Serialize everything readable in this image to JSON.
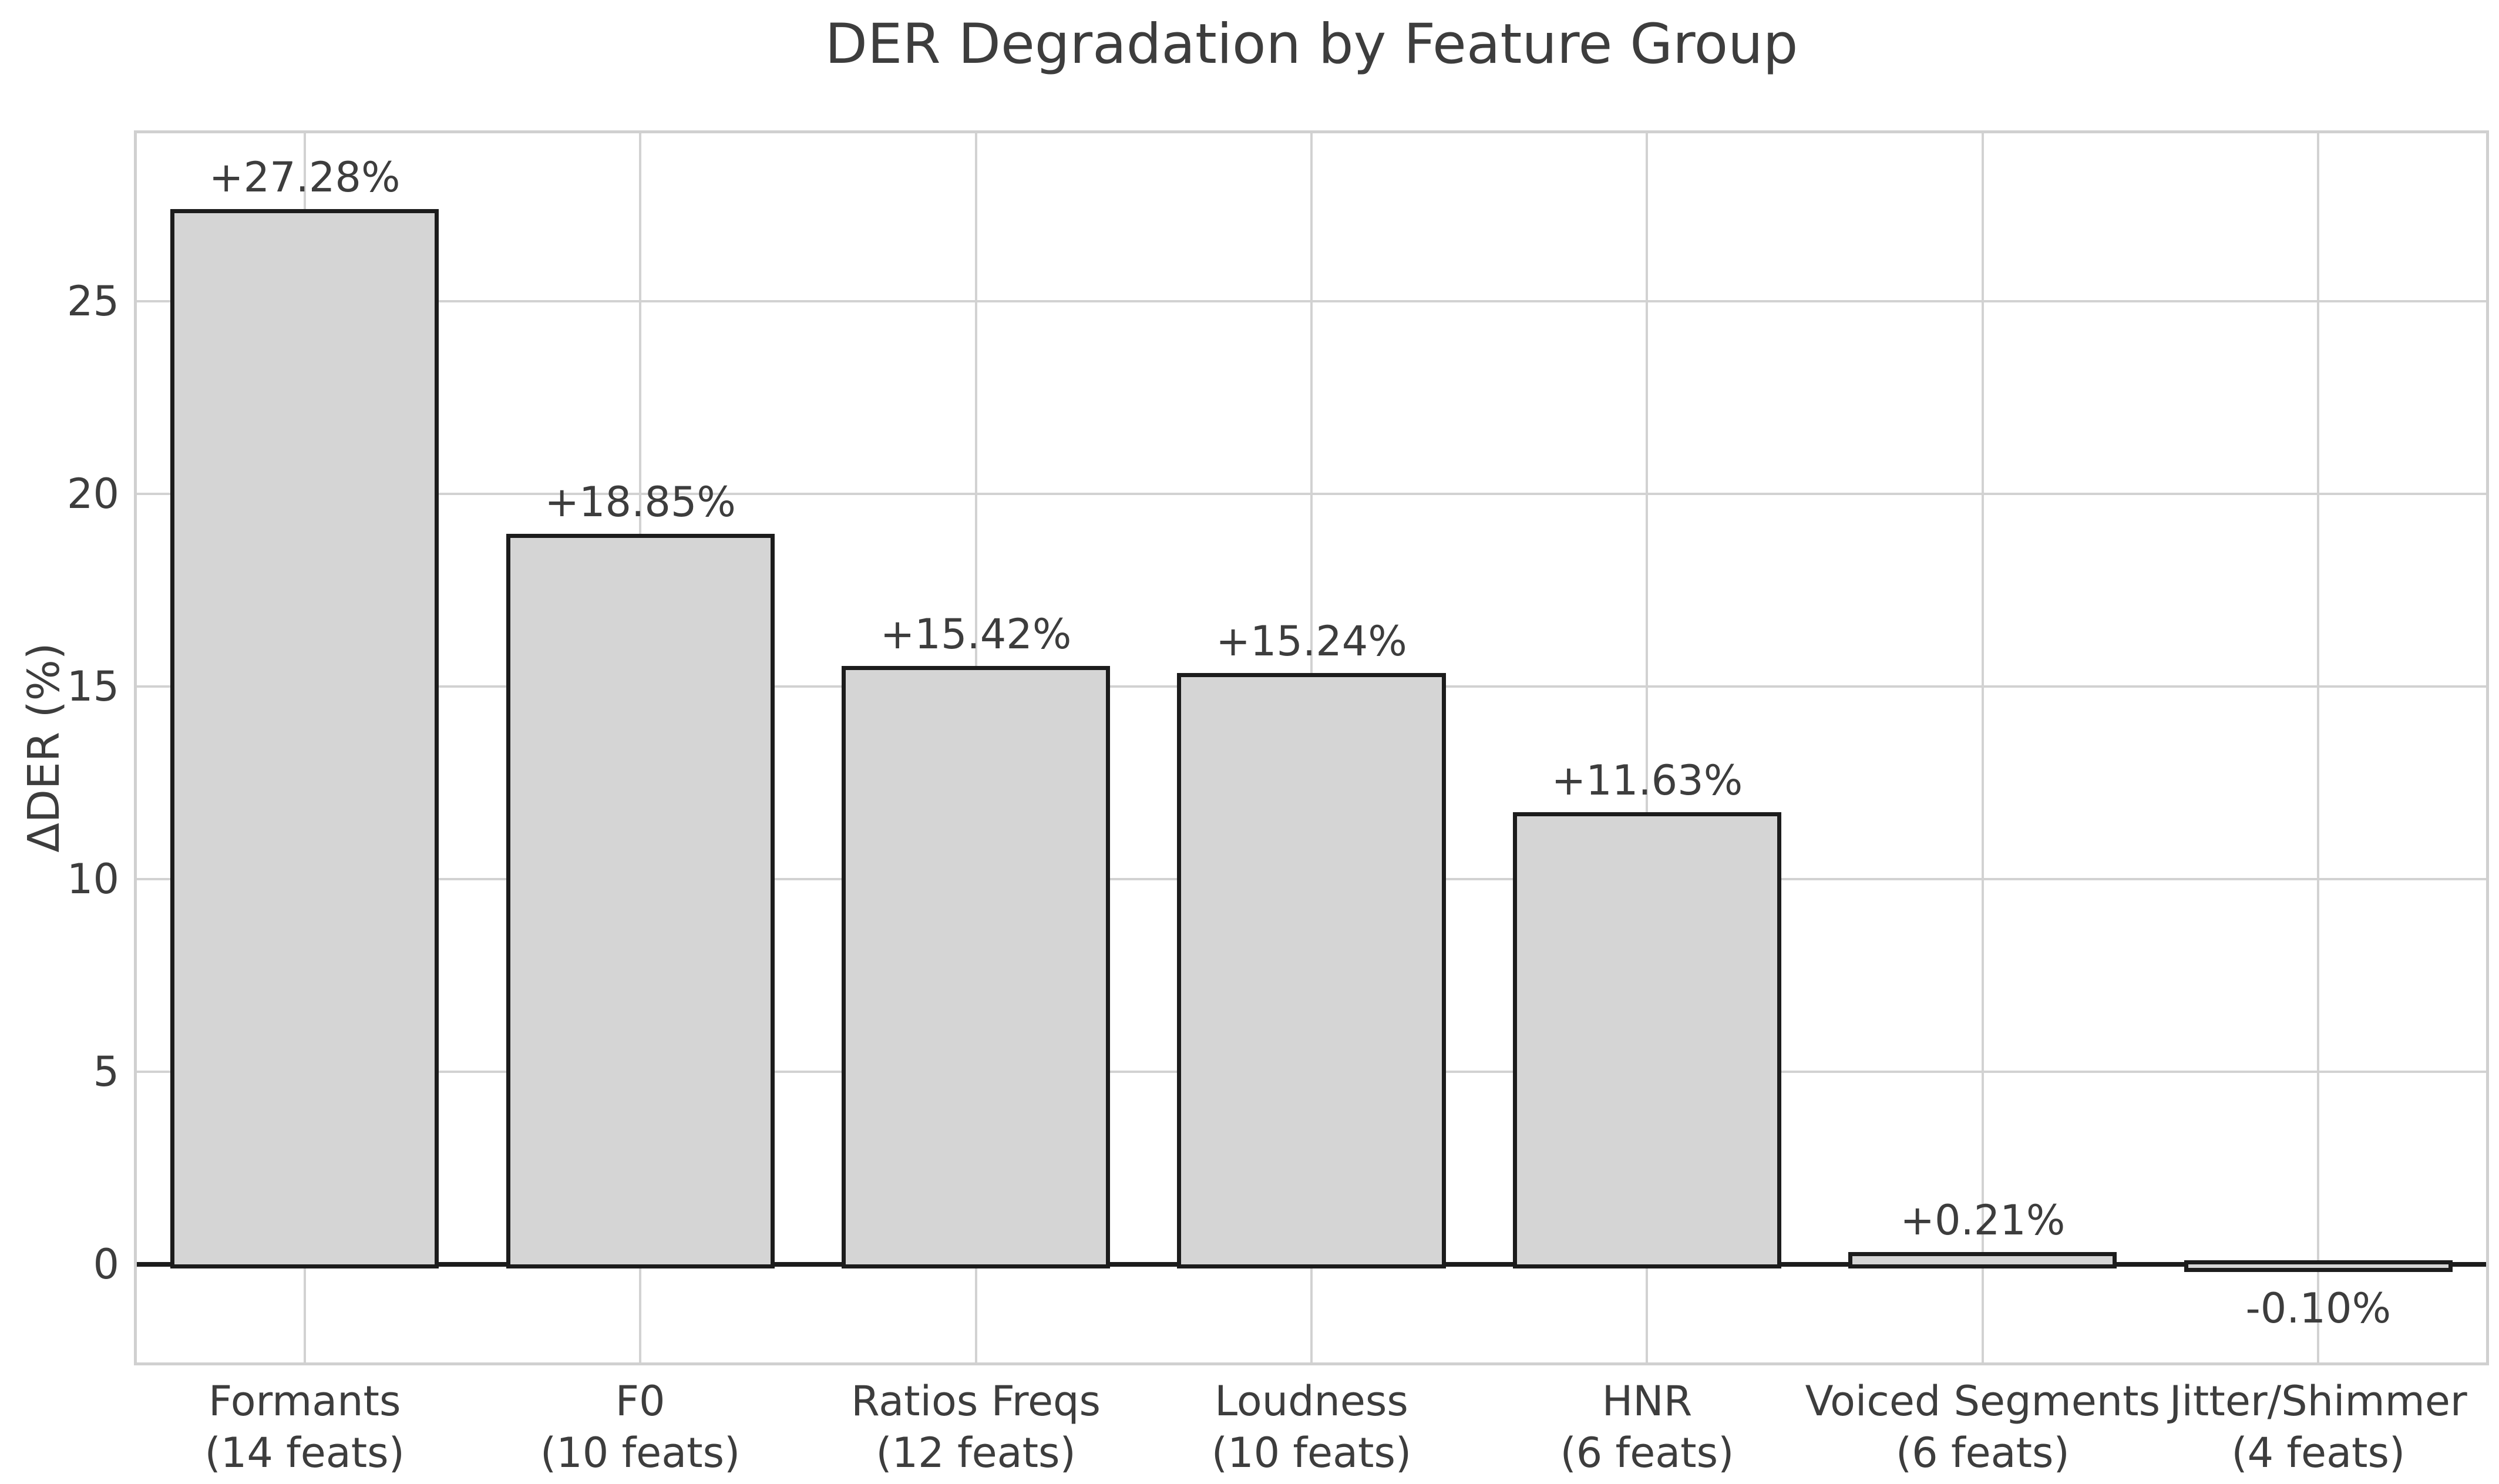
{
  "figure": {
    "title": "DER Degradation by Feature Group",
    "ylabel": "ΔDER (%)"
  },
  "chart_data": {
    "type": "bar",
    "title": "DER Degradation by Feature Group",
    "xlabel": "",
    "ylabel": "ΔDER (%)",
    "categories": [
      "Formants",
      "F0",
      "Ratios Freqs",
      "Loudness",
      "HNR",
      "Voiced Segments",
      "Jitter/Shimmer"
    ],
    "category_sublabels": [
      "(14 feats)",
      "(10 feats)",
      "(12 feats)",
      "(10 feats)",
      "(6 feats)",
      "(6 feats)",
      "(4 feats)"
    ],
    "values": [
      27.28,
      18.85,
      15.42,
      15.24,
      11.63,
      0.21,
      -0.1
    ],
    "value_labels": [
      "+27.28%",
      "+18.85%",
      "+15.42%",
      "+15.24%",
      "+11.63%",
      "+0.21%",
      "-0.10%"
    ],
    "yticks": [
      0,
      5,
      10,
      15,
      20,
      25
    ],
    "ytick_labels": [
      "0",
      "5",
      "10",
      "15",
      "20",
      "25"
    ],
    "ylim": [
      -2.55,
      29.36
    ],
    "bar_width_fraction": 0.8,
    "grid": true,
    "legend_position": "none",
    "colors": {
      "bar_fill": "#d5d5d5",
      "bar_edge": "#1c1c1c",
      "grid": "#d2d2d2",
      "zero_line": "#1c1c1c",
      "text": "#3d3d3d",
      "background": "#ffffff"
    }
  }
}
